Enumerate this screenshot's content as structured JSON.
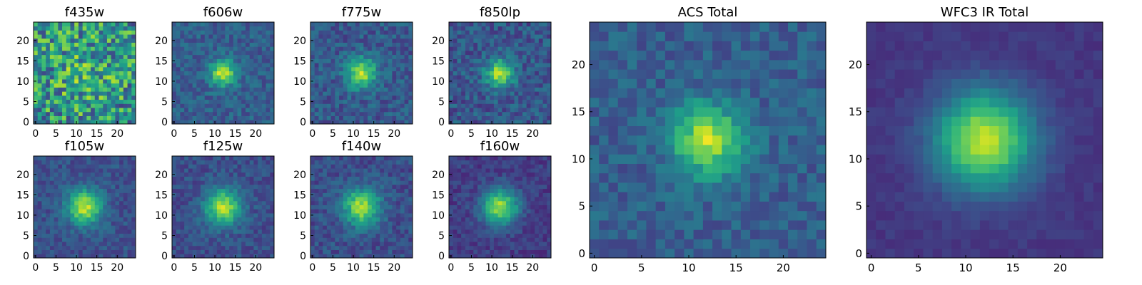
{
  "figure": {
    "background": "#ffffff"
  },
  "chart_data": [
    {
      "type": "heatmap",
      "title": "f435w",
      "colormap": "viridis",
      "grid_size": 25,
      "peak": [
        12,
        12
      ],
      "sigma": 6.0,
      "amplitude": 0.12,
      "noise": 0.65,
      "base": 0.5,
      "seed": 11,
      "xlim": [
        0,
        24
      ],
      "ylim": [
        0,
        24
      ],
      "xticks": [
        "0",
        "5",
        "10",
        "15",
        "20"
      ],
      "yticks": [
        "0",
        "5",
        "10",
        "15",
        "20"
      ]
    },
    {
      "type": "heatmap",
      "title": "f606w",
      "colormap": "viridis",
      "grid_size": 25,
      "peak": [
        12,
        12
      ],
      "sigma": 2.2,
      "amplitude": 0.62,
      "noise": 0.22,
      "base": 0.3,
      "seed": 23,
      "xlim": [
        0,
        24
      ],
      "ylim": [
        0,
        24
      ],
      "xticks": [
        "0",
        "5",
        "10",
        "15",
        "20"
      ],
      "yticks": [
        "0",
        "5",
        "10",
        "15",
        "20"
      ]
    },
    {
      "type": "heatmap",
      "title": "f775w",
      "colormap": "viridis",
      "grid_size": 25,
      "peak": [
        12,
        12
      ],
      "sigma": 2.6,
      "amplitude": 0.58,
      "noise": 0.24,
      "base": 0.28,
      "seed": 37,
      "xlim": [
        0,
        24
      ],
      "ylim": [
        0,
        24
      ],
      "xticks": [
        "0",
        "5",
        "10",
        "15",
        "20"
      ],
      "yticks": [
        "0",
        "5",
        "10",
        "15",
        "20"
      ]
    },
    {
      "type": "heatmap",
      "title": "f850lp",
      "colormap": "viridis",
      "grid_size": 25,
      "peak": [
        12,
        12
      ],
      "sigma": 2.4,
      "amplitude": 0.6,
      "noise": 0.26,
      "base": 0.27,
      "seed": 41,
      "xlim": [
        0,
        24
      ],
      "ylim": [
        0,
        24
      ],
      "xticks": [
        "0",
        "5",
        "10",
        "15",
        "20"
      ],
      "yticks": [
        "0",
        "5",
        "10",
        "15",
        "20"
      ]
    },
    {
      "type": "heatmap",
      "title": "f105w",
      "colormap": "viridis",
      "grid_size": 25,
      "peak": [
        12,
        12
      ],
      "sigma": 3.0,
      "amplitude": 0.65,
      "noise": 0.18,
      "base": 0.25,
      "seed": 53,
      "xlim": [
        0,
        24
      ],
      "ylim": [
        0,
        24
      ],
      "xticks": [
        "0",
        "5",
        "10",
        "15",
        "20"
      ],
      "yticks": [
        "0",
        "5",
        "10",
        "15",
        "20"
      ]
    },
    {
      "type": "heatmap",
      "title": "f125w",
      "colormap": "viridis",
      "grid_size": 25,
      "peak": [
        12,
        12
      ],
      "sigma": 3.1,
      "amplitude": 0.64,
      "noise": 0.18,
      "base": 0.24,
      "seed": 67,
      "xlim": [
        0,
        24
      ],
      "ylim": [
        0,
        24
      ],
      "xticks": [
        "0",
        "5",
        "10",
        "15",
        "20"
      ],
      "yticks": [
        "0",
        "5",
        "10",
        "15",
        "20"
      ]
    },
    {
      "type": "heatmap",
      "title": "f140w",
      "colormap": "viridis",
      "grid_size": 25,
      "peak": [
        12,
        12
      ],
      "sigma": 3.2,
      "amplitude": 0.62,
      "noise": 0.2,
      "base": 0.24,
      "seed": 71,
      "xlim": [
        0,
        24
      ],
      "ylim": [
        0,
        24
      ],
      "xticks": [
        "0",
        "5",
        "10",
        "15",
        "20"
      ],
      "yticks": [
        "0",
        "5",
        "10",
        "15",
        "20"
      ]
    },
    {
      "type": "heatmap",
      "title": "f160w",
      "colormap": "viridis",
      "grid_size": 25,
      "peak": [
        12,
        12
      ],
      "sigma": 3.1,
      "amplitude": 0.68,
      "noise": 0.16,
      "base": 0.18,
      "seed": 83,
      "xlim": [
        0,
        24
      ],
      "ylim": [
        0,
        24
      ],
      "xticks": [
        "0",
        "5",
        "10",
        "15",
        "20"
      ],
      "yticks": [
        "0",
        "5",
        "10",
        "15",
        "20"
      ]
    },
    {
      "type": "heatmap",
      "title": "ACS Total",
      "colormap": "viridis",
      "grid_size": 25,
      "peak": [
        12,
        12
      ],
      "sigma": 2.6,
      "amplitude": 0.6,
      "noise": 0.2,
      "base": 0.3,
      "seed": 97,
      "xlim": [
        0,
        24
      ],
      "ylim": [
        0,
        24
      ],
      "xticks": [
        "0",
        "5",
        "10",
        "15",
        "20"
      ],
      "yticks": [
        "0",
        "5",
        "10",
        "15",
        "20"
      ]
    },
    {
      "type": "heatmap",
      "title": "WFC3 IR Total",
      "colormap": "viridis",
      "grid_size": 25,
      "peak": [
        12,
        12
      ],
      "sigma": 3.6,
      "amplitude": 0.75,
      "noise": 0.07,
      "base": 0.16,
      "seed": 101,
      "xlim": [
        0,
        24
      ],
      "ylim": [
        0,
        24
      ],
      "xticks": [
        "0",
        "5",
        "10",
        "15",
        "20"
      ],
      "yticks": [
        "0",
        "5",
        "10",
        "15",
        "20"
      ]
    }
  ]
}
